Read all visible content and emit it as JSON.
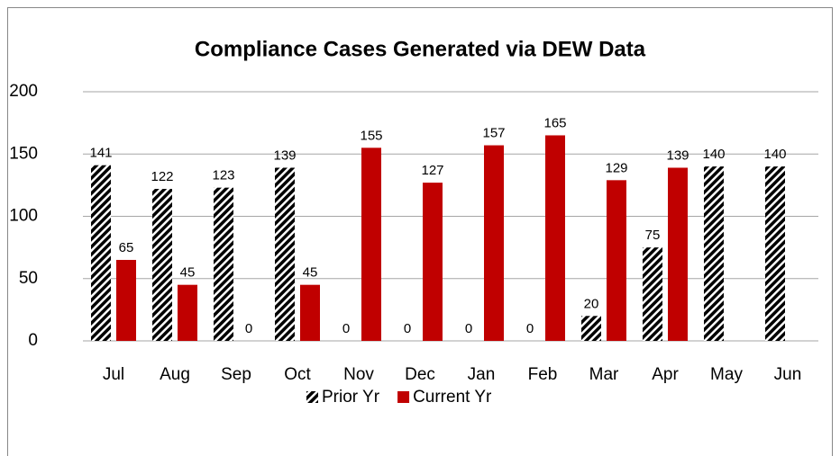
{
  "chart_data": {
    "type": "bar",
    "title": "Compliance Cases Generated via DEW Data",
    "categories": [
      "Jul",
      "Aug",
      "Sep",
      "Oct",
      "Nov",
      "Dec",
      "Jan",
      "Feb",
      "Mar",
      "Apr",
      "May",
      "Jun"
    ],
    "series": [
      {
        "name": "Prior Yr",
        "color": "#000000",
        "pattern": "hatch",
        "values": [
          141,
          122,
          123,
          139,
          0,
          0,
          0,
          0,
          20,
          75,
          140,
          140
        ]
      },
      {
        "name": "Current Yr",
        "color": "#c00000",
        "values": [
          65,
          45,
          0,
          45,
          155,
          127,
          157,
          165,
          129,
          139,
          null,
          null
        ]
      }
    ],
    "ylim": [
      0,
      200
    ],
    "yticks": [
      0,
      50,
      100,
      150,
      200
    ],
    "grid": true,
    "legend": "bottom"
  }
}
